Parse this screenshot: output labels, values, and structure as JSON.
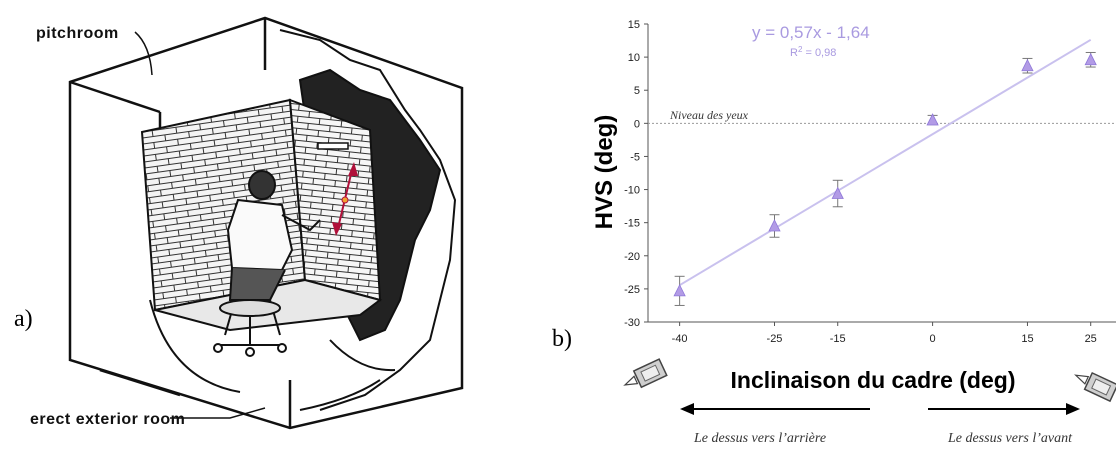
{
  "panel_a": {
    "label": "a)",
    "caption_top": "pitchroom",
    "caption_bottom": "erect exterior room"
  },
  "panel_b": {
    "label": "b)",
    "equation": "y = 0,57x - 1,64",
    "r2_prefix": "R",
    "r2_suffix": " = 0,98",
    "eye_level_label": "Niveau des yeux",
    "left_direction": "Le dessus vers l’arrière",
    "right_direction": "Le dessus vers l’avant"
  },
  "chart_data": {
    "type": "scatter",
    "xlabel": "Inclinaison du cadre (deg)",
    "ylabel": "HVS (deg)",
    "x_ticks": [
      "-40",
      "-25",
      "-15",
      "0",
      "15",
      "25"
    ],
    "y_ticks": [
      "15",
      "10",
      "5",
      "0",
      "-5",
      "-10",
      "-15",
      "-20",
      "-25",
      "-30"
    ],
    "xlim": [
      -45,
      29
    ],
    "ylim": [
      -30,
      15
    ],
    "points": [
      {
        "x": -40,
        "y": -25.3,
        "err": 2.2
      },
      {
        "x": -25,
        "y": -15.5,
        "err": 1.7
      },
      {
        "x": -15,
        "y": -10.6,
        "err": 2.0
      },
      {
        "x": 0,
        "y": 0.5,
        "err": 0.7
      },
      {
        "x": 15,
        "y": 8.7,
        "err": 1.1
      },
      {
        "x": 25,
        "y": 9.6,
        "err": 1.1
      }
    ],
    "trendline": {
      "slope": 0.57,
      "intercept": -1.64,
      "x_range": [
        -40,
        25
      ]
    },
    "reference_line_y": 0,
    "marker": "triangle",
    "colors": {
      "marker": "#b29be6",
      "trendline": "#c9c1ee",
      "error_bar": "#777777",
      "reference": "#999999"
    },
    "grid": false
  }
}
